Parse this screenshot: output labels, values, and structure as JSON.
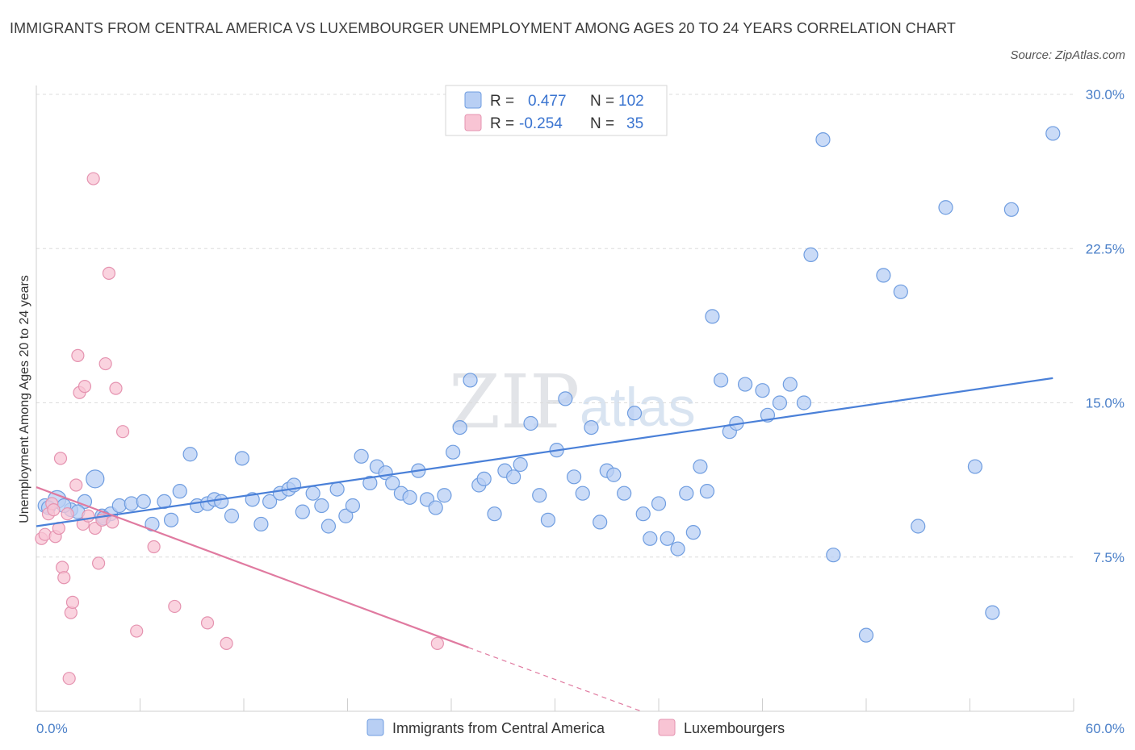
{
  "title": "IMMIGRANTS FROM CENTRAL AMERICA VS LUXEMBOURGER UNEMPLOYMENT AMONG AGES 20 TO 24 YEARS CORRELATION CHART",
  "source": "Source: ZipAtlas.com",
  "watermark": {
    "zip": "ZIP",
    "atlas": "atlas"
  },
  "colors": {
    "blue": "#4a80d8",
    "blue_fill": "#b8cff4",
    "pink": "#e07aa0",
    "pink_fill": "#f8c4d4",
    "tick": "#4a7fc8",
    "grid": "#dcdcdc"
  },
  "legend": {
    "rows": [
      {
        "r_label": "R =",
        "r_value": "0.477",
        "n_label": "N =",
        "n_value": "102"
      },
      {
        "r_label": "R =",
        "r_value": "-0.254",
        "n_label": "N =",
        "n_value": "35"
      }
    ]
  },
  "chart_data": {
    "type": "scatter",
    "ylabel": "Unemployment Among Ages 20 to 24 years",
    "xlim": [
      0,
      60
    ],
    "ylim": [
      0,
      30
    ],
    "x_tick_labels": [
      {
        "value": 0,
        "label": "0.0%"
      },
      {
        "value": 60,
        "label": "60.0%"
      }
    ],
    "y_ticks": [
      {
        "value": 7.5,
        "label": "7.5%"
      },
      {
        "value": 15,
        "label": "15.0%"
      },
      {
        "value": 22.5,
        "label": "22.5%"
      },
      {
        "value": 30,
        "label": "30.0%"
      }
    ],
    "grid": "horizontal dashed",
    "legend_placement": "top-center",
    "series": [
      {
        "name": "Immigrants from Central America",
        "color": "#4a80d8",
        "trend": {
          "x": [
            0,
            58.8
          ],
          "y": [
            9.0,
            16.2
          ]
        },
        "points": [
          [
            0.5,
            10.0
          ],
          [
            1.2,
            10.3
          ],
          [
            2.0,
            9.8
          ],
          [
            2.8,
            10.2
          ],
          [
            3.4,
            11.3
          ],
          [
            3.8,
            9.5
          ],
          [
            4.3,
            9.6
          ],
          [
            4.8,
            10.0
          ],
          [
            5.5,
            10.1
          ],
          [
            6.2,
            10.2
          ],
          [
            6.7,
            9.1
          ],
          [
            7.4,
            10.2
          ],
          [
            7.8,
            9.3
          ],
          [
            8.3,
            10.7
          ],
          [
            8.9,
            12.5
          ],
          [
            9.3,
            10.0
          ],
          [
            9.9,
            10.1
          ],
          [
            10.3,
            10.3
          ],
          [
            10.7,
            10.2
          ],
          [
            11.3,
            9.5
          ],
          [
            11.9,
            12.3
          ],
          [
            12.5,
            10.3
          ],
          [
            13.0,
            9.1
          ],
          [
            13.5,
            10.2
          ],
          [
            14.1,
            10.6
          ],
          [
            14.6,
            10.8
          ],
          [
            14.9,
            11.0
          ],
          [
            15.4,
            9.7
          ],
          [
            16.0,
            10.6
          ],
          [
            16.5,
            10.0
          ],
          [
            16.9,
            9.0
          ],
          [
            17.4,
            10.8
          ],
          [
            17.9,
            9.5
          ],
          [
            18.3,
            10.0
          ],
          [
            18.8,
            12.4
          ],
          [
            19.3,
            11.1
          ],
          [
            19.7,
            11.9
          ],
          [
            20.2,
            11.6
          ],
          [
            20.6,
            11.1
          ],
          [
            21.1,
            10.6
          ],
          [
            21.6,
            10.4
          ],
          [
            22.1,
            11.7
          ],
          [
            22.6,
            10.3
          ],
          [
            23.1,
            9.9
          ],
          [
            23.6,
            10.5
          ],
          [
            24.1,
            12.6
          ],
          [
            24.5,
            13.8
          ],
          [
            25.1,
            16.1
          ],
          [
            25.6,
            11.0
          ],
          [
            25.9,
            11.3
          ],
          [
            26.5,
            9.6
          ],
          [
            27.1,
            11.7
          ],
          [
            27.6,
            11.4
          ],
          [
            28.0,
            12.0
          ],
          [
            28.6,
            14.0
          ],
          [
            29.1,
            10.5
          ],
          [
            29.6,
            9.3
          ],
          [
            30.1,
            12.7
          ],
          [
            30.6,
            15.2
          ],
          [
            31.1,
            11.4
          ],
          [
            31.6,
            10.6
          ],
          [
            32.1,
            13.8
          ],
          [
            32.6,
            9.2
          ],
          [
            33.0,
            11.7
          ],
          [
            33.4,
            11.5
          ],
          [
            34.0,
            10.6
          ],
          [
            34.6,
            14.5
          ],
          [
            35.1,
            9.6
          ],
          [
            35.5,
            8.4
          ],
          [
            36.0,
            10.1
          ],
          [
            36.5,
            8.4
          ],
          [
            37.1,
            7.9
          ],
          [
            37.6,
            10.6
          ],
          [
            38.0,
            8.7
          ],
          [
            38.4,
            11.9
          ],
          [
            38.8,
            10.7
          ],
          [
            39.1,
            19.2
          ],
          [
            39.6,
            16.1
          ],
          [
            40.1,
            13.6
          ],
          [
            40.5,
            14.0
          ],
          [
            41.0,
            15.9
          ],
          [
            42.0,
            15.6
          ],
          [
            42.3,
            14.4
          ],
          [
            43.0,
            15.0
          ],
          [
            43.6,
            15.9
          ],
          [
            44.4,
            15.0
          ],
          [
            44.8,
            22.2
          ],
          [
            45.5,
            27.8
          ],
          [
            46.1,
            7.6
          ],
          [
            48.0,
            3.7
          ],
          [
            49.0,
            21.2
          ],
          [
            50.0,
            20.4
          ],
          [
            51.0,
            9.0
          ],
          [
            52.6,
            24.5
          ],
          [
            54.3,
            11.9
          ],
          [
            55.3,
            4.8
          ],
          [
            56.4,
            24.4
          ],
          [
            58.8,
            28.1
          ],
          [
            0.7,
            9.9
          ],
          [
            1.6,
            10.0
          ],
          [
            2.4,
            9.7
          ],
          [
            3.9,
            9.4
          ]
        ]
      },
      {
        "name": "Luxembourgers",
        "color": "#e07aa0",
        "trend": {
          "x": [
            0,
            25.0
          ],
          "y": [
            10.9,
            3.1
          ]
        },
        "trend_dashed": {
          "x": [
            25.0,
            35.0
          ],
          "y": [
            3.1,
            0
          ]
        },
        "points": [
          [
            0.3,
            8.4
          ],
          [
            0.5,
            8.6
          ],
          [
            0.7,
            9.6
          ],
          [
            0.9,
            10.1
          ],
          [
            1.0,
            9.8
          ],
          [
            1.1,
            8.5
          ],
          [
            1.3,
            8.9
          ],
          [
            1.4,
            12.3
          ],
          [
            1.5,
            7.0
          ],
          [
            1.6,
            6.5
          ],
          [
            1.8,
            9.6
          ],
          [
            1.9,
            1.6
          ],
          [
            2.0,
            4.8
          ],
          [
            2.1,
            5.3
          ],
          [
            2.3,
            11.0
          ],
          [
            2.4,
            17.3
          ],
          [
            2.5,
            15.5
          ],
          [
            2.7,
            9.1
          ],
          [
            2.8,
            15.8
          ],
          [
            3.0,
            9.5
          ],
          [
            3.3,
            25.9
          ],
          [
            3.4,
            8.9
          ],
          [
            3.6,
            7.2
          ],
          [
            3.8,
            9.3
          ],
          [
            4.0,
            16.9
          ],
          [
            4.2,
            21.3
          ],
          [
            4.4,
            9.2
          ],
          [
            4.6,
            15.7
          ],
          [
            5.0,
            13.6
          ],
          [
            5.8,
            3.9
          ],
          [
            6.8,
            8.0
          ],
          [
            8.0,
            5.1
          ],
          [
            9.9,
            4.3
          ],
          [
            11.0,
            3.3
          ],
          [
            23.2,
            3.3
          ]
        ]
      }
    ]
  }
}
